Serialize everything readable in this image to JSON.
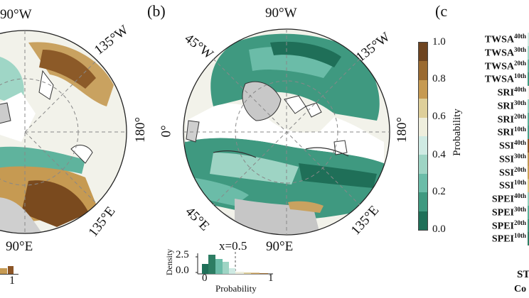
{
  "panels": {
    "b": "(b)",
    "c": "(c"
  },
  "left_map": {
    "labels": {
      "top": "90°W",
      "top_right": "135°W",
      "right": "180°",
      "bottom_right": "135°E",
      "bottom": "90°E"
    },
    "mini_axis_tick": "1"
  },
  "right_map": {
    "labels": {
      "top": "90°W",
      "top_left": "45°W",
      "top_right": "135°W",
      "left": "0°",
      "right": "180°",
      "bottom_left": "45°E",
      "bottom_right": "135°E",
      "bottom": "90°E"
    },
    "inset": {
      "threshold_label": "x=0.5",
      "ylabel": "Density",
      "xlabel": "Probability",
      "yticks": [
        "2.5",
        "0.0"
      ],
      "xticks": [
        "0",
        "1"
      ]
    }
  },
  "colorbar": {
    "label": "Probability",
    "ticks": [
      "1.0",
      "0.8",
      "0.6",
      "0.4",
      "0.2",
      "0.0"
    ],
    "colors": [
      "#6e4420",
      "#9a6a30",
      "#c69a52",
      "#decf9a",
      "#eeeedd",
      "#cfeae3",
      "#9ed4c4",
      "#6bbca8",
      "#3f9980",
      "#1f6f58"
    ]
  },
  "rows": [
    {
      "name": "TWSA",
      "sup": "40th",
      "color": "#cdeae1"
    },
    {
      "name": "TWSA",
      "sup": "30th",
      "color": "#9fd6c6"
    },
    {
      "name": "TWSA",
      "sup": "20th",
      "color": "#5fb39d"
    },
    {
      "name": "TWSA",
      "sup": "10th",
      "color": "#3e9a80"
    },
    {
      "name": "SRI",
      "sup": "40th",
      "color": "#f4f4ee"
    },
    {
      "name": "SRI",
      "sup": "30th",
      "color": "#8ccfbb"
    },
    {
      "name": "SRI",
      "sup": "20th",
      "color": "#56ae96"
    },
    {
      "name": "SRI",
      "sup": "10th",
      "color": "#47a08a"
    },
    {
      "name": "SSI",
      "sup": "40th",
      "color": "#8c5526"
    },
    {
      "name": "SSI",
      "sup": "30th",
      "color": "#bf9550"
    },
    {
      "name": "SSI",
      "sup": "20th",
      "color": "#c99f55"
    },
    {
      "name": "SSI",
      "sup": "10th",
      "color": "#d9c27c"
    },
    {
      "name": "SPEI",
      "sup": "40th",
      "color": "#8ecfba"
    },
    {
      "name": "SPEI",
      "sup": "30th",
      "color": "#58b098"
    },
    {
      "name": "SPEI",
      "sup": "20th",
      "color": "#3c9479"
    },
    {
      "name": "SPEI",
      "sup": "10th",
      "color": "#2d7d63"
    }
  ],
  "bottom_text": "ST",
  "bottom_text2": "Co"
}
